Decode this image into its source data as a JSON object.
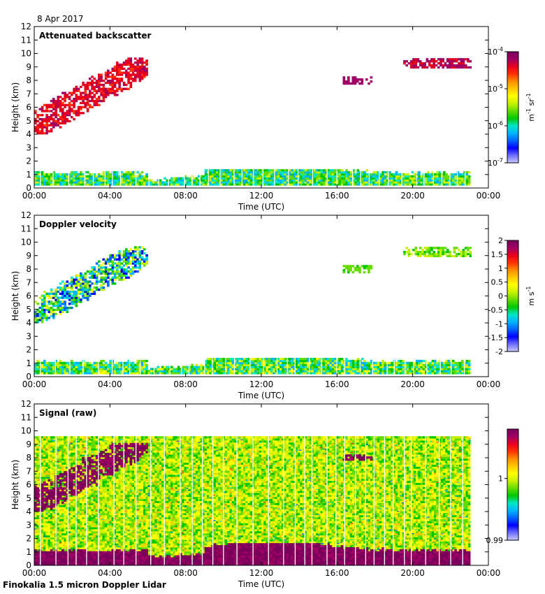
{
  "page": {
    "date": "8 Apr 2017",
    "footer": "Finokalia 1.5 micron Doppler Lidar"
  },
  "colors": {
    "scale": [
      "#c8c8ff",
      "#6e6eff",
      "#0000ff",
      "#0064ff",
      "#00b4ff",
      "#00e6c8",
      "#00c800",
      "#64dc00",
      "#c8f000",
      "#ffff00",
      "#ffc800",
      "#ff8c00",
      "#ff3200",
      "#e6001e",
      "#a00064",
      "#7a005a"
    ]
  },
  "chart_data": [
    {
      "type": "heatmap",
      "title": "Attenuated backscatter",
      "xlabel": "Time (UTC)",
      "ylabel": "Height (km)",
      "xlim": [
        0,
        24
      ],
      "ylim": [
        0,
        12
      ],
      "x_ticks": [
        "00:00",
        "04:00",
        "08:00",
        "12:00",
        "16:00",
        "20:00",
        "00:00"
      ],
      "y_ticks": [
        "0",
        "1",
        "2",
        "3",
        "4",
        "5",
        "6",
        "7",
        "8",
        "9",
        "10",
        "11",
        "12"
      ],
      "colorbar": {
        "unit_main": "m",
        "unit_sup1": "-1",
        "unit_mid": " sr",
        "unit_sup2": "-1",
        "scale": "log",
        "ticks": [
          {
            "base": "10",
            "exp": "-4",
            "v": -4
          },
          {
            "base": "10",
            "exp": "-5",
            "v": -5
          },
          {
            "base": "10",
            "exp": "-6",
            "v": -6
          },
          {
            "base": "10",
            "exp": "-7",
            "v": -7
          }
        ],
        "range": [
          -7,
          -4
        ]
      },
      "features": [
        {
          "name": "boundary layer",
          "t": [
            0,
            23
          ],
          "h": [
            0.2,
            1.3
          ],
          "level": [
            0.25,
            0.55
          ]
        },
        {
          "name": "elevated aerosol layer",
          "t": [
            0,
            6
          ],
          "h": [
            4,
            9.6
          ],
          "level": [
            0.82,
            0.92
          ]
        },
        {
          "name": "layer near 8 km",
          "t": [
            16.3,
            17.8
          ],
          "h": [
            7.7,
            8.3
          ],
          "level": [
            0.9,
            0.95
          ]
        },
        {
          "name": "layer near 9.5 km",
          "t": [
            19.5,
            23
          ],
          "h": [
            8.9,
            9.6
          ],
          "level": [
            0.88,
            0.94
          ]
        }
      ]
    },
    {
      "type": "heatmap",
      "title": "Doppler velocity",
      "xlabel": "Time (UTC)",
      "ylabel": "Height (km)",
      "xlim": [
        0,
        24
      ],
      "ylim": [
        0,
        12
      ],
      "x_ticks": [
        "00:00",
        "04:00",
        "08:00",
        "12:00",
        "16:00",
        "20:00",
        "00:00"
      ],
      "y_ticks": [
        "0",
        "1",
        "2",
        "3",
        "4",
        "5",
        "6",
        "7",
        "8",
        "9",
        "10",
        "11",
        "12"
      ],
      "colorbar": {
        "unit": "m s",
        "unit_sup": "-1",
        "scale": "linear",
        "ticks": [
          {
            "label": "2",
            "v": 2
          },
          {
            "label": "1.5",
            "v": 1.5
          },
          {
            "label": "1",
            "v": 1
          },
          {
            "label": "0.5",
            "v": 0.5
          },
          {
            "label": "0",
            "v": 0
          },
          {
            "label": "-0.5",
            "v": -0.5
          },
          {
            "label": "-1",
            "v": -1
          },
          {
            "label": "-1.5",
            "v": -1.5
          },
          {
            "label": "-2",
            "v": -2
          }
        ],
        "range": [
          -2,
          2
        ]
      },
      "features": [
        {
          "name": "boundary layer",
          "t": [
            0,
            23
          ],
          "h": [
            0.2,
            1.3
          ],
          "level": [
            0.25,
            0.6
          ]
        },
        {
          "name": "elevated aerosol layer",
          "t": [
            0,
            6
          ],
          "h": [
            4,
            9.6
          ],
          "level": [
            0.1,
            0.6
          ]
        },
        {
          "name": "layer near 8 km",
          "t": [
            16.3,
            17.8
          ],
          "h": [
            7.7,
            8.3
          ],
          "level": [
            0.4,
            0.5
          ]
        },
        {
          "name": "layer near 9.5 km",
          "t": [
            19.5,
            23
          ],
          "h": [
            8.9,
            9.6
          ],
          "level": [
            0.4,
            0.55
          ]
        }
      ]
    },
    {
      "type": "heatmap",
      "title": "Signal (raw)",
      "xlabel": "Time (UTC)",
      "ylabel": "Height (km)",
      "xlim": [
        0,
        24
      ],
      "ylim": [
        0,
        12
      ],
      "x_ticks": [
        "00:00",
        "04:00",
        "08:00",
        "12:00",
        "16:00",
        "20:00",
        "00:00"
      ],
      "y_ticks": [
        "0",
        "1",
        "2",
        "3",
        "4",
        "5",
        "6",
        "7",
        "8",
        "9",
        "10",
        "11",
        "12"
      ],
      "colorbar": {
        "unit": "",
        "scale": "linear",
        "ticks": [
          {
            "label": "1",
            "v": 1
          },
          {
            "label": "0.99",
            "v": 0.99
          }
        ],
        "range": [
          0.99,
          1.008
        ]
      },
      "features": [
        {
          "name": "noise field",
          "t": [
            0,
            23
          ],
          "h": [
            0,
            9.6
          ],
          "level": [
            0.4,
            0.65
          ]
        },
        {
          "name": "boundary layer",
          "t": [
            0,
            23
          ],
          "h": [
            0,
            1.5
          ],
          "level": [
            0.95,
            1
          ]
        },
        {
          "name": "elevated aerosol layer",
          "t": [
            0,
            6
          ],
          "h": [
            4,
            9
          ],
          "level": [
            0.95,
            1
          ]
        },
        {
          "name": "layer near 8 km",
          "t": [
            16.3,
            17.8
          ],
          "h": [
            7.8,
            8.2
          ],
          "level": [
            0.95,
            1
          ]
        }
      ]
    }
  ]
}
